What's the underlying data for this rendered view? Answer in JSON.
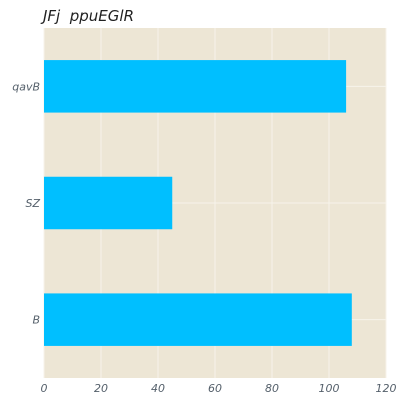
{
  "chart_data": {
    "type": "bar",
    "orientation": "horizontal",
    "title": "JFj  ppuEGlR",
    "xlabel": "",
    "ylabel": "",
    "categories": [
      "qavB",
      "SZ",
      "B"
    ],
    "values": [
      106,
      45,
      108
    ],
    "xlim": [
      0,
      120
    ],
    "xticks": [
      0,
      20,
      40,
      60,
      80,
      100,
      120
    ],
    "grid": true,
    "colors": {
      "bar": "#00bfff",
      "plot_background": "#ede6d5",
      "grid": "#f7f3ea"
    }
  }
}
